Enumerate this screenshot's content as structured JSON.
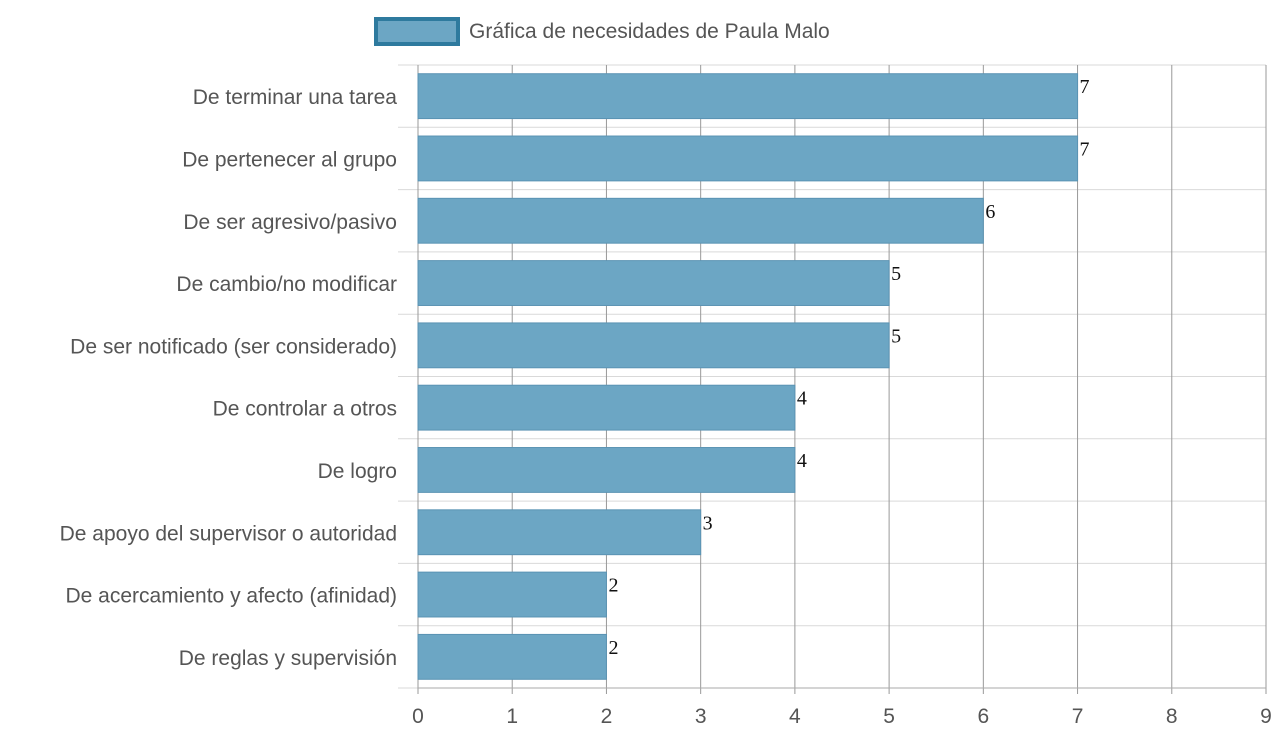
{
  "chart_data": {
    "type": "bar",
    "orientation": "horizontal",
    "categories": [
      "De terminar una tarea",
      "De pertenecer al grupo",
      "De ser agresivo/pasivo",
      "De cambio/no modificar",
      "De ser notificado (ser considerado)",
      "De controlar a otros",
      "De logro",
      "De apoyo del supervisor o autoridad",
      "De acercamiento y afecto (afinidad)",
      "De reglas y supervisión"
    ],
    "series": [
      {
        "name": "Gráfica de necesidades de Paula Malo",
        "values": [
          7,
          7,
          6,
          5,
          5,
          4,
          4,
          3,
          2,
          2
        ]
      }
    ],
    "xlim": [
      0,
      9
    ],
    "xticks": [
      "0",
      "1",
      "2",
      "3",
      "4",
      "5",
      "6",
      "7",
      "8",
      "9"
    ],
    "grid": true,
    "legend_position": "top-center",
    "data_labels": true,
    "colors": {
      "bar_fill": "#6ca6c4",
      "bar_stroke": "#5a93b3",
      "legend_stroke": "#2e7a9e",
      "grid": "#d9d9d9",
      "vgrid": "#999999"
    }
  }
}
